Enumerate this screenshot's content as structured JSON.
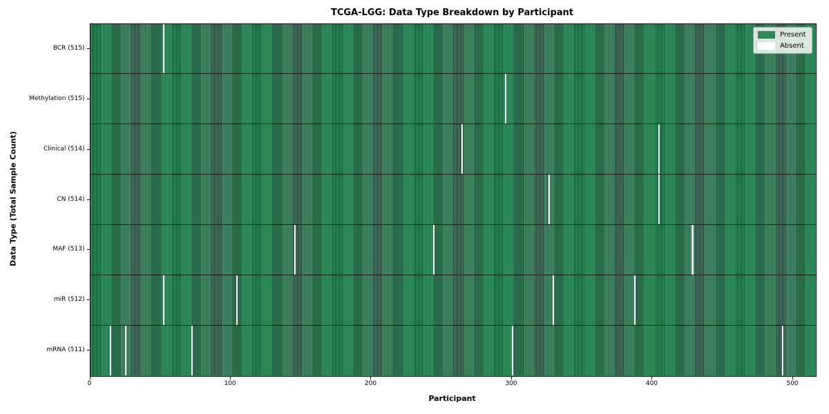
{
  "chart_data": {
    "type": "heatmap",
    "title": "TCGA-LGG: Data Type Breakdown by Participant",
    "xlabel": "Participant",
    "ylabel": "Data Type (Total Sample Count)",
    "x_ticks": [
      0,
      100,
      200,
      300,
      400,
      500
    ],
    "xlim": [
      0,
      516
    ],
    "n_participants": 516,
    "grid": false,
    "legend_position": "upper right",
    "legend": [
      {
        "label": "Present",
        "color": "#2e8b57"
      },
      {
        "label": "Absent",
        "color": "#ffffff"
      }
    ],
    "rows": [
      {
        "label": "BCR (515)",
        "data_type": "BCR",
        "present_count": 515,
        "absent_participants": [
          52
        ]
      },
      {
        "label": "Methylation (515)",
        "data_type": "Methylation",
        "present_count": 515,
        "absent_participants": [
          295
        ]
      },
      {
        "label": "Clinical (514)",
        "data_type": "Clinical",
        "present_count": 514,
        "absent_participants": [
          264,
          404
        ]
      },
      {
        "label": "CN (514)",
        "data_type": "CN",
        "present_count": 514,
        "absent_participants": [
          326,
          404
        ]
      },
      {
        "label": "MAF (513)",
        "data_type": "MAF",
        "present_count": 513,
        "absent_participants": [
          145,
          244,
          428
        ]
      },
      {
        "label": "miR (512)",
        "data_type": "miR",
        "present_count": 512,
        "absent_participants": [
          52,
          104,
          329,
          387
        ]
      },
      {
        "label": "mRNA (511)",
        "data_type": "mRNA",
        "present_count": 511,
        "absent_participants": [
          14,
          25,
          72,
          300,
          492
        ]
      }
    ],
    "colors": {
      "present_fill": "#3e9a6b",
      "present_edge": "#143c2a",
      "legend_present": "#2e8b57",
      "absent": "#ffffff"
    }
  }
}
